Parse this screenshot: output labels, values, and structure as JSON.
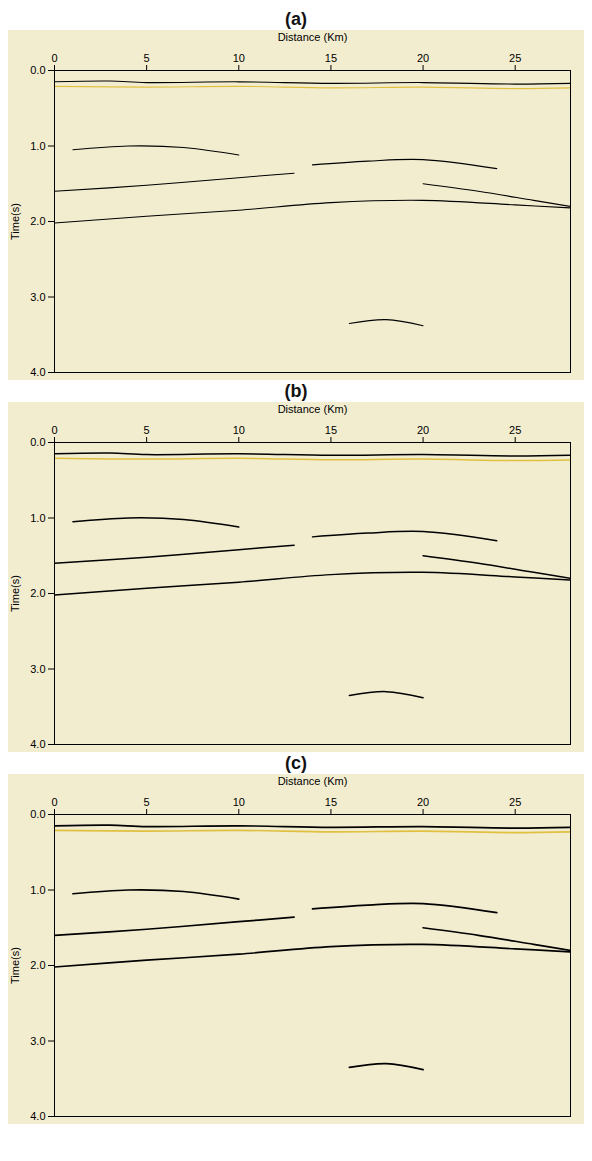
{
  "chart_data": [
    {
      "type": "line",
      "title": "(a)",
      "x_label": "Distance (Km)",
      "y_label": "Time(s)",
      "xlim": [
        0,
        28
      ],
      "xticks": [
        0,
        5,
        10,
        15,
        20,
        25
      ],
      "ylim": [
        0,
        4
      ],
      "yticks": [
        0,
        1,
        2,
        3,
        4
      ],
      "series": [
        {
          "color": "#000000",
          "x": [
            0,
            3,
            5,
            10,
            15,
            20,
            25,
            28
          ],
          "values": [
            0.15,
            0.14,
            0.16,
            0.15,
            0.17,
            0.16,
            0.18,
            0.17
          ]
        },
        {
          "color": "#e0c040",
          "x": [
            0,
            5,
            10,
            15,
            20,
            25,
            28
          ],
          "values": [
            0.21,
            0.22,
            0.21,
            0.23,
            0.22,
            0.24,
            0.23
          ]
        },
        {
          "color": "#000000",
          "x": [
            0,
            5,
            10,
            13
          ],
          "values": [
            1.6,
            1.52,
            1.42,
            1.36
          ]
        },
        {
          "color": "#000000",
          "x": [
            1,
            4,
            7,
            10
          ],
          "values": [
            1.05,
            1.0,
            1.02,
            1.12
          ]
        },
        {
          "color": "#000000",
          "x": [
            14,
            17,
            20,
            24
          ],
          "values": [
            1.25,
            1.2,
            1.18,
            1.3
          ]
        },
        {
          "color": "#000000",
          "x": [
            0,
            5,
            10,
            15,
            20,
            25,
            28
          ],
          "values": [
            2.02,
            1.93,
            1.85,
            1.75,
            1.72,
            1.78,
            1.82
          ]
        },
        {
          "color": "#000000",
          "x": [
            20,
            23,
            26,
            28
          ],
          "values": [
            1.5,
            1.6,
            1.72,
            1.8
          ]
        },
        {
          "color": "#000000",
          "x": [
            16,
            18,
            20
          ],
          "values": [
            3.35,
            3.3,
            3.38
          ]
        }
      ]
    },
    {
      "type": "line",
      "title": "(b)",
      "x_label": "Distance (Km)",
      "y_label": "Time(s)",
      "xlim": [
        0,
        28
      ],
      "xticks": [
        0,
        5,
        10,
        15,
        20,
        25
      ],
      "ylim": [
        0,
        4
      ],
      "yticks": [
        0,
        1,
        2,
        3,
        4
      ],
      "series": [
        {
          "color": "#000000",
          "x": [
            0,
            3,
            5,
            10,
            15,
            20,
            25,
            28
          ],
          "values": [
            0.15,
            0.14,
            0.16,
            0.15,
            0.17,
            0.16,
            0.18,
            0.17
          ]
        },
        {
          "color": "#e0c040",
          "x": [
            0,
            5,
            10,
            15,
            20,
            25,
            28
          ],
          "values": [
            0.21,
            0.22,
            0.21,
            0.23,
            0.22,
            0.24,
            0.23
          ]
        },
        {
          "color": "#000000",
          "x": [
            0,
            5,
            10,
            13
          ],
          "values": [
            1.6,
            1.52,
            1.42,
            1.36
          ]
        },
        {
          "color": "#000000",
          "x": [
            1,
            4,
            7,
            10
          ],
          "values": [
            1.05,
            1.0,
            1.02,
            1.12
          ]
        },
        {
          "color": "#000000",
          "x": [
            14,
            17,
            20,
            24
          ],
          "values": [
            1.25,
            1.2,
            1.18,
            1.3
          ]
        },
        {
          "color": "#000000",
          "x": [
            0,
            5,
            10,
            15,
            20,
            25,
            28
          ],
          "values": [
            2.02,
            1.93,
            1.85,
            1.75,
            1.72,
            1.78,
            1.82
          ]
        },
        {
          "color": "#000000",
          "x": [
            20,
            23,
            26,
            28
          ],
          "values": [
            1.5,
            1.6,
            1.72,
            1.8
          ]
        },
        {
          "color": "#000000",
          "x": [
            16,
            18,
            20
          ],
          "values": [
            3.35,
            3.3,
            3.38
          ]
        }
      ]
    },
    {
      "type": "line",
      "title": "(c)",
      "x_label": "Distance (Km)",
      "y_label": "Time(s)",
      "xlim": [
        0,
        28
      ],
      "xticks": [
        0,
        5,
        10,
        15,
        20,
        25
      ],
      "ylim": [
        0,
        4
      ],
      "yticks": [
        0,
        1,
        2,
        3,
        4
      ],
      "series": [
        {
          "color": "#000000",
          "x": [
            0,
            3,
            5,
            10,
            15,
            20,
            25,
            28
          ],
          "values": [
            0.15,
            0.14,
            0.16,
            0.15,
            0.17,
            0.16,
            0.18,
            0.17
          ]
        },
        {
          "color": "#e0c040",
          "x": [
            0,
            5,
            10,
            15,
            20,
            25,
            28
          ],
          "values": [
            0.21,
            0.22,
            0.21,
            0.23,
            0.22,
            0.24,
            0.23
          ]
        },
        {
          "color": "#000000",
          "x": [
            0,
            5,
            10,
            13
          ],
          "values": [
            1.6,
            1.52,
            1.42,
            1.36
          ]
        },
        {
          "color": "#000000",
          "x": [
            1,
            4,
            7,
            10
          ],
          "values": [
            1.05,
            1.0,
            1.02,
            1.12
          ]
        },
        {
          "color": "#000000",
          "x": [
            14,
            17,
            20,
            24
          ],
          "values": [
            1.25,
            1.2,
            1.18,
            1.3
          ]
        },
        {
          "color": "#000000",
          "x": [
            0,
            5,
            10,
            15,
            20,
            25,
            28
          ],
          "values": [
            2.02,
            1.93,
            1.85,
            1.75,
            1.72,
            1.78,
            1.82
          ]
        },
        {
          "color": "#000000",
          "x": [
            20,
            23,
            26,
            28
          ],
          "values": [
            1.5,
            1.6,
            1.72,
            1.8
          ]
        },
        {
          "color": "#000000",
          "x": [
            16,
            18,
            20
          ],
          "values": [
            3.35,
            3.3,
            3.38
          ]
        }
      ]
    }
  ]
}
